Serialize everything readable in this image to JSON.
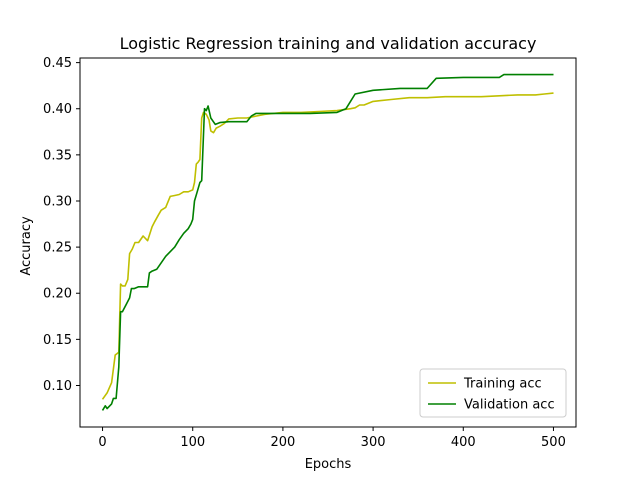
{
  "chart_data": {
    "type": "line",
    "title": "Logistic Regression training and validation accuracy",
    "xlabel": "Epochs",
    "ylabel": "Accuracy",
    "xlim": [
      -25,
      525
    ],
    "ylim": [
      0.055,
      0.455
    ],
    "xticks": [
      0,
      100,
      200,
      300,
      400,
      500
    ],
    "yticks": [
      0.1,
      0.15,
      0.2,
      0.25,
      0.3,
      0.35,
      0.4,
      0.45
    ],
    "ytick_labels": [
      "0.10",
      "0.15",
      "0.20",
      "0.25",
      "0.30",
      "0.35",
      "0.40",
      "0.45"
    ],
    "grid": false,
    "legend_position": "lower-right",
    "series": [
      {
        "name": "Training acc",
        "color": "#bfbf00",
        "x": [
          0,
          5,
          10,
          14,
          18,
          20,
          22,
          25,
          28,
          30,
          33,
          36,
          40,
          45,
          50,
          55,
          58,
          62,
          65,
          70,
          75,
          80,
          85,
          90,
          95,
          100,
          102,
          104,
          106,
          108,
          110,
          112,
          115,
          118,
          120,
          123,
          126,
          130,
          135,
          140,
          150,
          160,
          170,
          180,
          200,
          220,
          240,
          260,
          275,
          280,
          285,
          290,
          300,
          320,
          340,
          360,
          380,
          400,
          420,
          440,
          460,
          480,
          490,
          500
        ],
        "y": [
          0.085,
          0.092,
          0.103,
          0.133,
          0.136,
          0.21,
          0.208,
          0.208,
          0.215,
          0.243,
          0.248,
          0.255,
          0.255,
          0.262,
          0.257,
          0.272,
          0.278,
          0.285,
          0.29,
          0.293,
          0.305,
          0.306,
          0.307,
          0.31,
          0.31,
          0.312,
          0.32,
          0.34,
          0.342,
          0.345,
          0.39,
          0.396,
          0.394,
          0.388,
          0.376,
          0.374,
          0.379,
          0.381,
          0.384,
          0.389,
          0.39,
          0.39,
          0.392,
          0.394,
          0.396,
          0.396,
          0.397,
          0.398,
          0.4,
          0.401,
          0.404,
          0.404,
          0.408,
          0.41,
          0.412,
          0.412,
          0.413,
          0.413,
          0.413,
          0.414,
          0.415,
          0.415,
          0.416,
          0.417
        ]
      },
      {
        "name": "Validation acc",
        "color": "#008000",
        "x": [
          0,
          3,
          5,
          10,
          12,
          15,
          18,
          20,
          22,
          30,
          32,
          35,
          40,
          50,
          52,
          55,
          60,
          65,
          70,
          75,
          80,
          85,
          90,
          95,
          98,
          100,
          102,
          105,
          108,
          110,
          113,
          115,
          117,
          120,
          125,
          130,
          140,
          150,
          160,
          165,
          170,
          200,
          230,
          260,
          270,
          275,
          280,
          300,
          330,
          360,
          370,
          400,
          440,
          445,
          460,
          500
        ],
        "y": [
          0.073,
          0.078,
          0.075,
          0.08,
          0.086,
          0.086,
          0.12,
          0.18,
          0.18,
          0.195,
          0.205,
          0.205,
          0.207,
          0.207,
          0.222,
          0.224,
          0.226,
          0.233,
          0.24,
          0.245,
          0.25,
          0.258,
          0.265,
          0.27,
          0.275,
          0.28,
          0.3,
          0.31,
          0.32,
          0.322,
          0.4,
          0.398,
          0.403,
          0.39,
          0.383,
          0.385,
          0.386,
          0.386,
          0.386,
          0.392,
          0.395,
          0.395,
          0.395,
          0.396,
          0.4,
          0.408,
          0.416,
          0.42,
          0.422,
          0.422,
          0.433,
          0.434,
          0.434,
          0.437,
          0.437,
          0.437
        ]
      }
    ]
  }
}
